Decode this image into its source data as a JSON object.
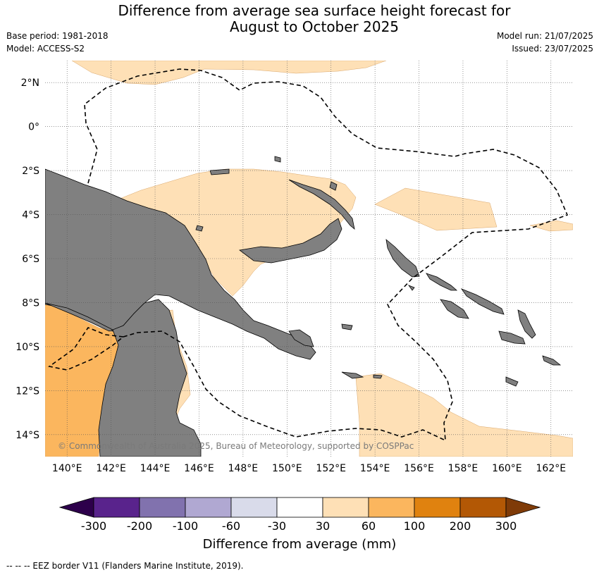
{
  "header": {
    "title_line1": "Difference from average sea surface height forecast for",
    "title_line2": "August to October 2025",
    "base_period": "Base period: 1981-2018",
    "model": "Model: ACCESS-S2",
    "model_run": "Model run: 21/07/2025",
    "issued": "Issued: 23/07/2025"
  },
  "map": {
    "lon_range": [
      139,
      163
    ],
    "lat_range": [
      -15,
      3
    ],
    "lon_ticks": [
      "140°E",
      "142°E",
      "144°E",
      "146°E",
      "148°E",
      "150°E",
      "152°E",
      "154°E",
      "156°E",
      "158°E",
      "160°E",
      "162°E"
    ],
    "lat_ticks": [
      "2°N",
      "0°",
      "2°S",
      "4°S",
      "6°S",
      "8°S",
      "10°S",
      "12°S",
      "14°S"
    ],
    "land_color": "#808080",
    "copyright": "© Commonwealth of Australia 2025, Bureau of Meteorology, supported by COSPPac"
  },
  "colorbar": {
    "title": "Difference from average (mm)",
    "labels": [
      "-300",
      "-200",
      "-100",
      "-60",
      "-30",
      "30",
      "60",
      "100",
      "200",
      "300"
    ],
    "colors": [
      "#59238c",
      "#8172ae",
      "#b0a8d2",
      "#d9dbea",
      "#ffffff",
      "#fee0b6",
      "#fbb65e",
      "#e0820f",
      "#b35805"
    ],
    "under_color": "#2d004b",
    "over_color": "#7f3b08"
  },
  "footer": {
    "legend_text": "--  --  -- EEZ border V11 (Flanders Marine Institute, 2019)."
  }
}
